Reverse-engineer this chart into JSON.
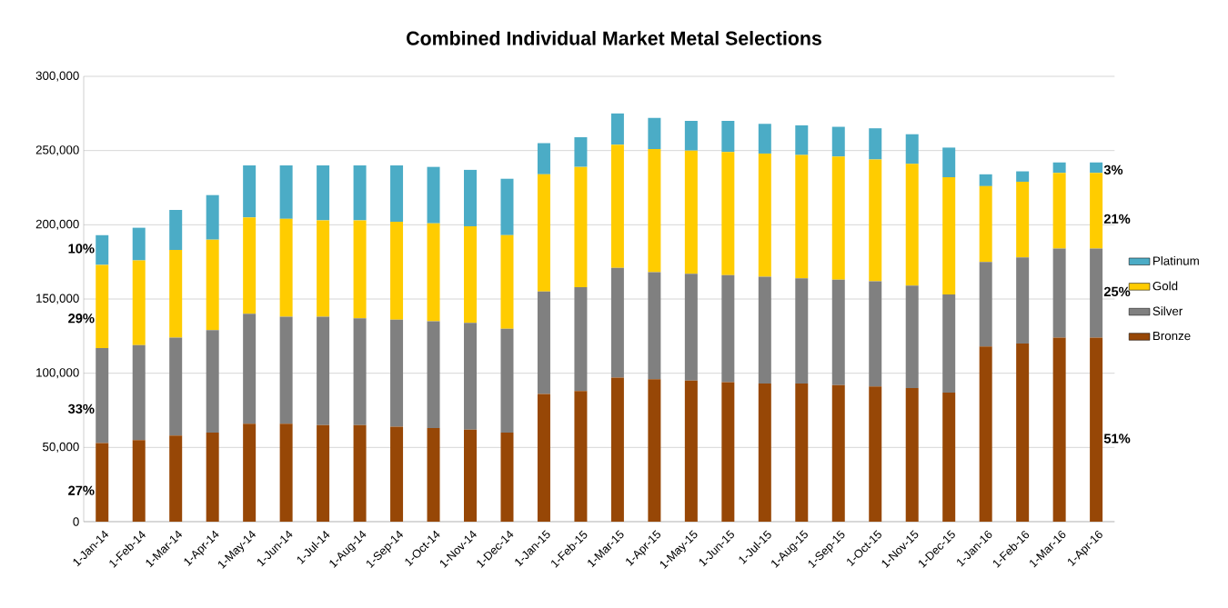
{
  "chart_data": {
    "type": "bar",
    "stacked": true,
    "title": "Combined Individual Market Metal Selections",
    "categories": [
      "1-Jan-14",
      "1-Feb-14",
      "1-Mar-14",
      "1-Apr-14",
      "1-May-14",
      "1-Jun-14",
      "1-Jul-14",
      "1-Aug-14",
      "1-Sep-14",
      "1-Oct-14",
      "1-Nov-14",
      "1-Dec-14",
      "1-Jan-15",
      "1-Feb-15",
      "1-Mar-15",
      "1-Apr-15",
      "1-May-15",
      "1-Jun-15",
      "1-Jul-15",
      "1-Aug-15",
      "1-Sep-15",
      "1-Oct-15",
      "1-Nov-15",
      "1-Dec-15",
      "1-Jan-16",
      "1-Feb-16",
      "1-Mar-16",
      "1-Apr-16"
    ],
    "series": [
      {
        "name": "Bronze",
        "color": "#974706",
        "values": [
          53000,
          55000,
          58000,
          60000,
          66000,
          66000,
          65000,
          65000,
          64000,
          63000,
          62000,
          60000,
          86000,
          88000,
          97000,
          96000,
          95000,
          94000,
          93000,
          93000,
          92000,
          91000,
          90000,
          87000,
          118000,
          120000,
          124000,
          124000
        ]
      },
      {
        "name": "Silver",
        "color": "#808080",
        "values": [
          64000,
          64000,
          66000,
          69000,
          74000,
          72000,
          73000,
          72000,
          72000,
          72000,
          72000,
          70000,
          69000,
          70000,
          74000,
          72000,
          72000,
          72000,
          72000,
          71000,
          71000,
          71000,
          69000,
          66000,
          57000,
          58000,
          60000,
          60000
        ]
      },
      {
        "name": "Gold",
        "color": "#ffcc00",
        "values": [
          56000,
          57000,
          59000,
          61000,
          65000,
          66000,
          65000,
          66000,
          66000,
          66000,
          65000,
          63000,
          79000,
          81000,
          83000,
          83000,
          83000,
          83000,
          83000,
          83000,
          83000,
          82000,
          82000,
          79000,
          51000,
          51000,
          51000,
          51000
        ]
      },
      {
        "name": "Platinum",
        "color": "#4bacc6",
        "values": [
          20000,
          22000,
          27000,
          30000,
          35000,
          36000,
          37000,
          37000,
          38000,
          38000,
          38000,
          38000,
          21000,
          20000,
          21000,
          21000,
          20000,
          21000,
          20000,
          20000,
          20000,
          21000,
          20000,
          20000,
          8000,
          7000,
          7000,
          7000
        ]
      }
    ],
    "ylim": [
      0,
      300000
    ],
    "yticks": [
      {
        "value": 0,
        "label": "0"
      },
      {
        "value": 50000,
        "label": "50,000"
      },
      {
        "value": 100000,
        "label": "100,000"
      },
      {
        "value": 150000,
        "label": "150,000"
      },
      {
        "value": 200000,
        "label": "200,000"
      },
      {
        "value": 250000,
        "label": "250,000"
      },
      {
        "value": 300000,
        "label": "300,000"
      }
    ],
    "grid": "y",
    "legend": "right",
    "annotations": [
      {
        "text": "27%",
        "x": "1-Jan-14",
        "y": 21000
      },
      {
        "text": "33%",
        "x": "1-Jan-14",
        "y": 76000
      },
      {
        "text": "29%",
        "x": "1-Jan-14",
        "y": 137000
      },
      {
        "text": "10%",
        "x": "1-Jan-14",
        "y": 184000
      },
      {
        "text": "51%",
        "x": "1-Apr-16",
        "y": 56000
      },
      {
        "text": "25%",
        "x": "1-Apr-16",
        "y": 155000
      },
      {
        "text": "21%",
        "x": "1-Apr-16",
        "y": 204000
      },
      {
        "text": "3%",
        "x": "1-Apr-16",
        "y": 237000
      }
    ]
  }
}
